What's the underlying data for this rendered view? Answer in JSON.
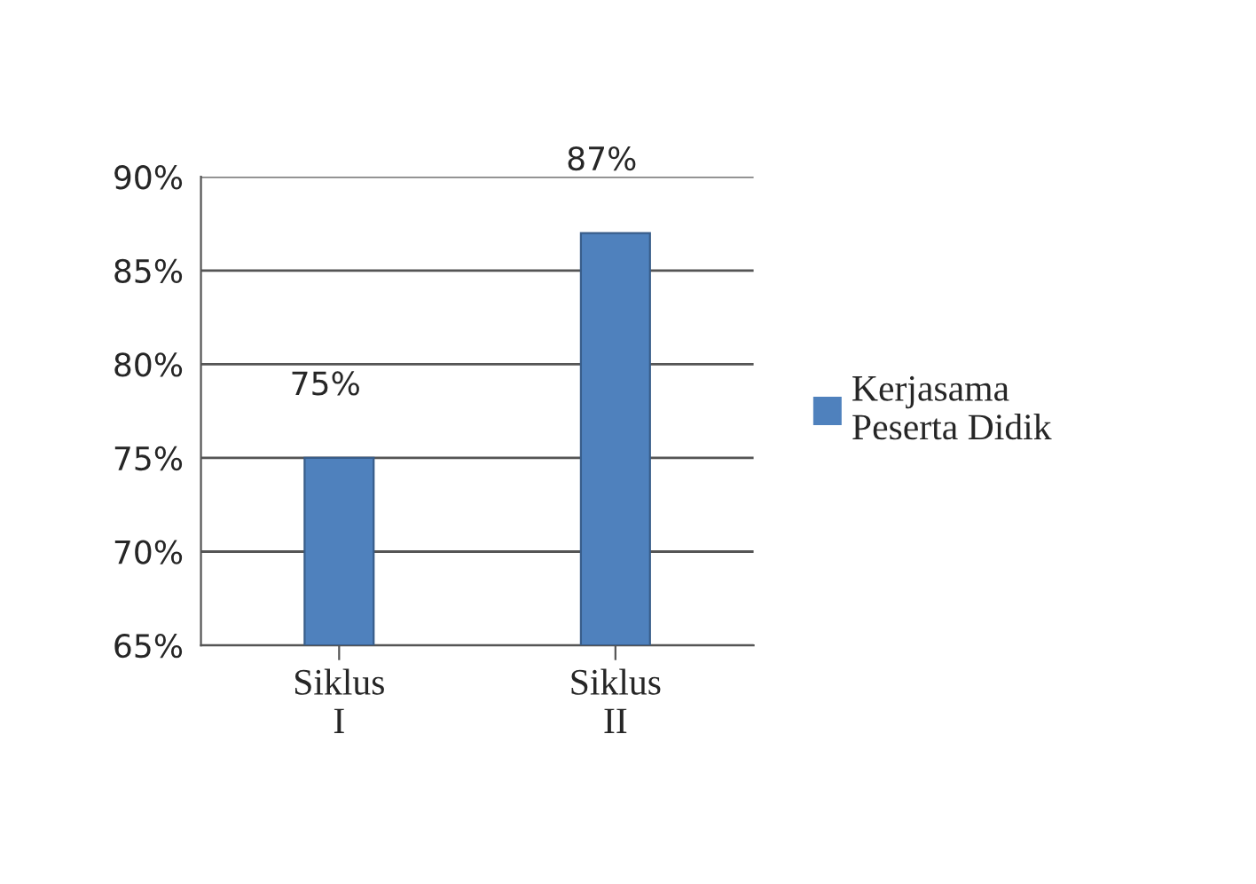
{
  "chart_data": {
    "type": "bar",
    "categories": [
      "Siklus I",
      "Siklus II"
    ],
    "series": [
      {
        "name": "Kerjasama Peserta Didik",
        "color": "#4f81bd",
        "values": [
          75,
          87
        ],
        "value_labels": [
          "75%",
          "87%"
        ]
      }
    ],
    "ylim": [
      65,
      90
    ],
    "yticks": [
      {
        "value": 65,
        "label": "65%"
      },
      {
        "value": 70,
        "label": "70%"
      },
      {
        "value": 75,
        "label": "75%"
      },
      {
        "value": 80,
        "label": "80%"
      },
      {
        "value": 85,
        "label": "85%"
      },
      {
        "value": 90,
        "label": "90%"
      }
    ],
    "grid": "y",
    "legend": "right"
  }
}
